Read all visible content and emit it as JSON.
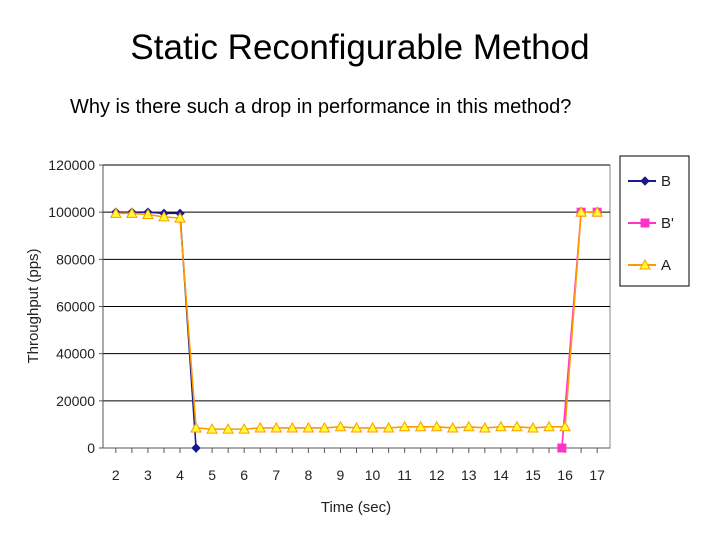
{
  "slide": {
    "title": "Static Reconfigurable Method",
    "subtitle": "Why is there such a drop in performance in this method?"
  },
  "colors": {
    "B": "#1a1a8c",
    "B_prime": "#ff33cc",
    "A_line": "#ff9900",
    "A_marker_fill": "#ffff33",
    "grid": "#000000"
  },
  "chart_data": {
    "type": "line",
    "xlabel": "Time (sec)",
    "ylabel": "Throughput (pps)",
    "ylim": [
      0,
      120000
    ],
    "yticks": [
      0,
      20000,
      40000,
      60000,
      80000,
      100000,
      120000
    ],
    "ytick_labels": [
      "0",
      "20000",
      "40000",
      "60000",
      "80000",
      "100000",
      "120000"
    ],
    "xlim": [
      1.6,
      17.4
    ],
    "xticks": [
      2,
      3,
      4,
      5,
      6,
      7,
      8,
      9,
      10,
      11,
      12,
      13,
      14,
      15,
      16,
      17
    ],
    "xtick_labels": [
      "2",
      "3",
      "4",
      "5",
      "6",
      "7",
      "8",
      "9",
      "10",
      "11",
      "12",
      "13",
      "14",
      "15",
      "16",
      "17"
    ],
    "grid": true,
    "legend_position": "right",
    "series": [
      {
        "name": "B",
        "marker": "diamond",
        "x": [
          2,
          2.5,
          3,
          3.5,
          4,
          4.5
        ],
        "y": [
          100000,
          100000,
          100000,
          99500,
          99500,
          0
        ]
      },
      {
        "name": "B'",
        "marker": "square",
        "x": [
          15.9,
          16.5,
          17
        ],
        "y": [
          0,
          100000,
          100000
        ]
      },
      {
        "name": "A",
        "marker": "triangle",
        "x": [
          2,
          2.5,
          3,
          3.5,
          4,
          4.5,
          5,
          5.5,
          6,
          6.5,
          7,
          7.5,
          8,
          8.5,
          9,
          9.5,
          10,
          10.5,
          11,
          11.5,
          12,
          12.5,
          13,
          13.5,
          14,
          14.5,
          15,
          15.5,
          16,
          16.5,
          17
        ],
        "y": [
          99500,
          99500,
          99000,
          98000,
          97500,
          8500,
          8000,
          8000,
          8000,
          8500,
          8500,
          8500,
          8500,
          8500,
          9000,
          8500,
          8500,
          8500,
          9000,
          9000,
          9000,
          8500,
          9000,
          8500,
          9000,
          9000,
          8500,
          9000,
          9000,
          100000,
          100000
        ]
      }
    ]
  }
}
